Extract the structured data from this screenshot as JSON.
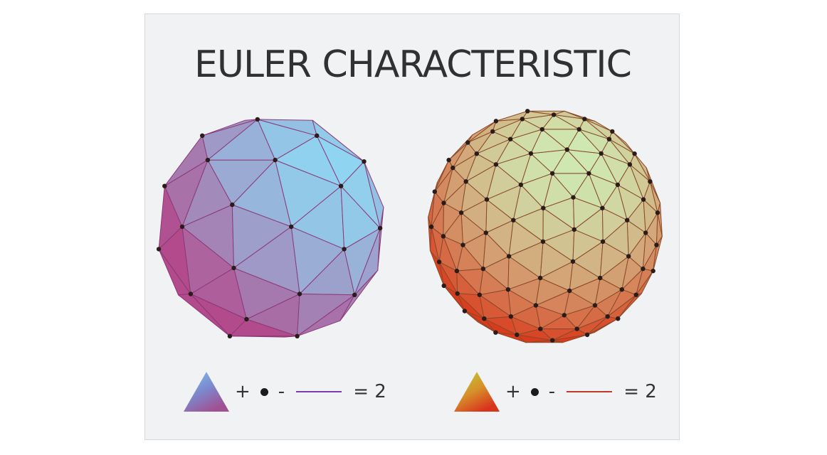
{
  "title": "EULER CHARACTERISTIC",
  "left_figure": {
    "icon": "geodesic-sphere-icon",
    "face_color_light": "#8fd5f2",
    "face_color_dark": "#b24a8c",
    "edge_color": "#8b3a78",
    "formula": {
      "plus": "+",
      "minus": "-",
      "equals": "= 2",
      "edge_color": "#7b3bb3"
    }
  },
  "right_figure": {
    "icon": "geodesic-sphere-icon",
    "face_color_light": "#cfe9b2",
    "face_color_dark": "#d93b1c",
    "edge_color": "#8a4a2a",
    "formula": {
      "plus": "+",
      "minus": "-",
      "equals": "= 2",
      "edge_color": "#c0392b"
    }
  }
}
